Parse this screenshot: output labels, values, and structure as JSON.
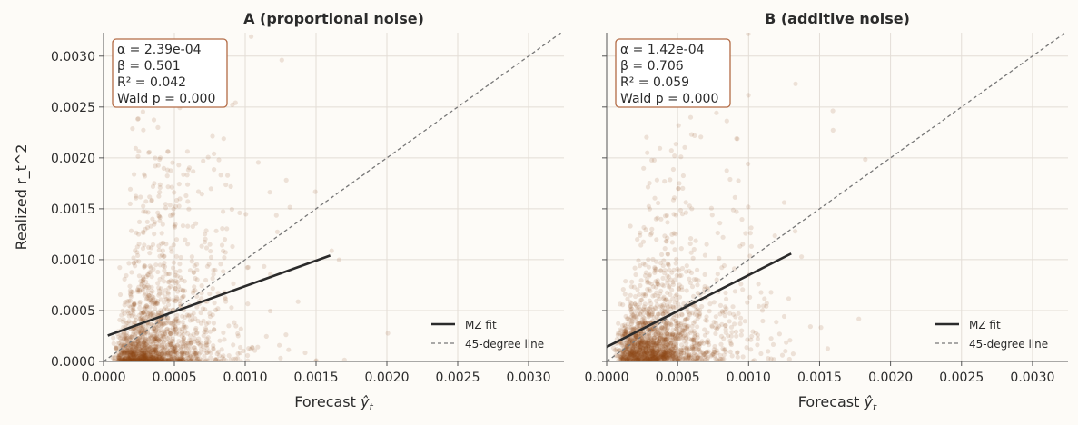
{
  "chart_data": [
    {
      "type": "scatter",
      "title": "A (proportional noise)",
      "xlabel": "Forecast ŷ_t",
      "ylabel": "Realized r_t^2",
      "xlim": [
        0,
        0.00325
      ],
      "ylim": [
        0,
        0.00323
      ],
      "xticks": [
        "0.0000",
        "0.0005",
        "0.0010",
        "0.0015",
        "0.0020",
        "0.0025",
        "0.0030"
      ],
      "yticks": [
        "0.0000",
        "0.0005",
        "0.0010",
        "0.0015",
        "0.0020",
        "0.0025",
        "0.0030"
      ],
      "grid": true,
      "point_color": "#8b4513",
      "fit": {
        "name": "MZ fit",
        "intercept": 0.000239,
        "slope": 0.501,
        "x_range": [
          3e-05,
          0.0016
        ],
        "color": "#2b2b2b"
      },
      "reference": {
        "name": "45-degree line",
        "color": "#777777"
      },
      "annotation": [
        "α = 2.39e-04",
        "β = 0.501",
        "R² = 0.042",
        "Wald p = 0.000"
      ],
      "legend_position": "lower-right"
    },
    {
      "type": "scatter",
      "title": "B (additive noise)",
      "xlabel": "Forecast ŷ_t",
      "ylabel": "",
      "xlim": [
        0,
        0.00325
      ],
      "ylim": [
        0,
        0.00323
      ],
      "xticks": [
        "0.0000",
        "0.0005",
        "0.0010",
        "0.0015",
        "0.0020",
        "0.0025",
        "0.0030"
      ],
      "yticks": [],
      "grid": true,
      "point_color": "#8b4513",
      "fit": {
        "name": "MZ fit",
        "intercept": 0.000142,
        "slope": 0.706,
        "x_range": [
          0,
          0.0013
        ],
        "color": "#2b2b2b"
      },
      "reference": {
        "name": "45-degree line",
        "color": "#777777"
      },
      "annotation": [
        "α = 1.42e-04",
        "β = 0.706",
        "R² = 0.059",
        "Wald p = 0.000"
      ],
      "legend_position": "lower-right"
    }
  ]
}
